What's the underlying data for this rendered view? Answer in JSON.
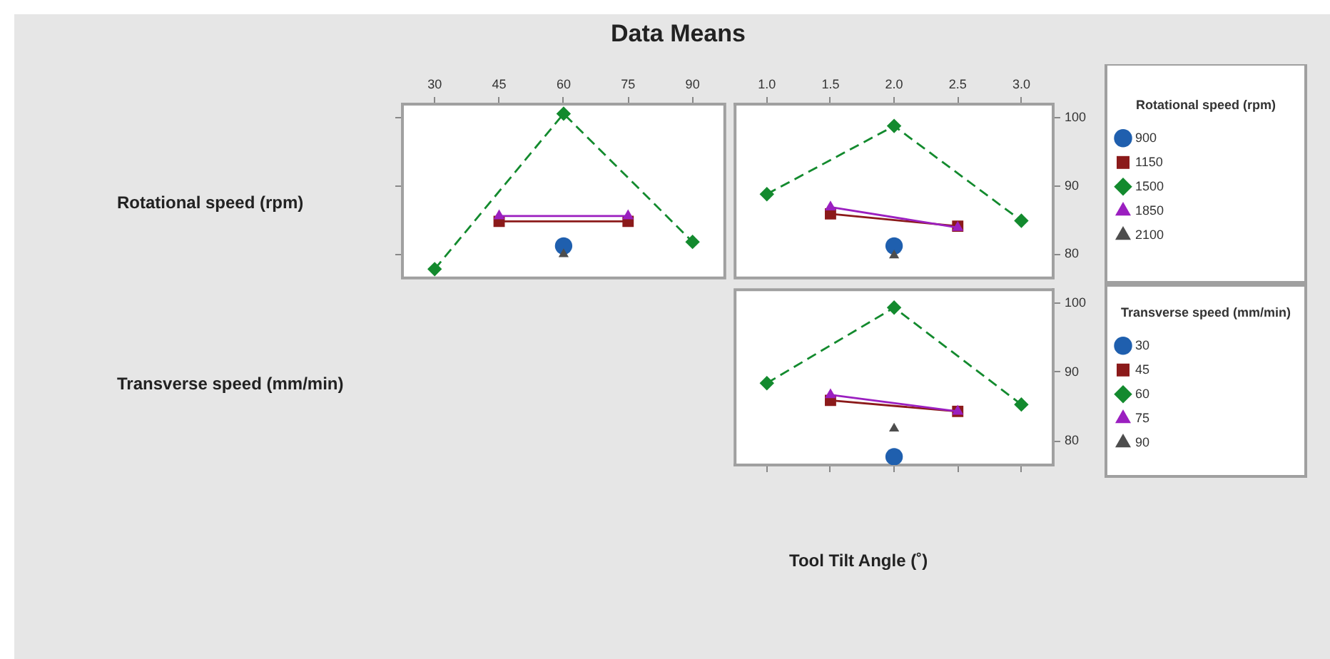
{
  "chart_data": [
    {
      "type": "line",
      "title": "Data Means",
      "ylabel": "Rotational speed (rpm)",
      "xlim": [
        22.5,
        97.5
      ],
      "xticks": [
        30,
        45,
        60,
        75,
        90
      ],
      "ylim": [
        76.5,
        102
      ],
      "yticks": [
        80,
        90,
        100
      ],
      "tick_labels": "x",
      "grid": false,
      "legend": false,
      "series": [
        {
          "color": "#1f5fae",
          "marker": "circle",
          "x": [
            60
          ],
          "values": [
            81.2
          ]
        },
        {
          "color": "#8b1a1a",
          "marker": "square",
          "x": [
            45,
            75
          ],
          "values": [
            84.8,
            84.8
          ]
        },
        {
          "color": "#138a2e",
          "marker": "diamond",
          "line_style": "dashed",
          "x": [
            30,
            60,
            90
          ],
          "values": [
            77.8,
            100.6,
            81.8
          ]
        },
        {
          "color": "#9b1fc0",
          "marker": "triangle",
          "x": [
            45,
            75
          ],
          "values": [
            85.6,
            85.6
          ]
        },
        {
          "color": "#4d4d4d",
          "marker": "triangle",
          "x": [
            60
          ],
          "values": [
            80.0
          ]
        }
      ]
    },
    {
      "type": "line",
      "legend_title": "Rotational speed (rpm)",
      "xlim": [
        0.75,
        3.25
      ],
      "xticks": [
        {
          "value": 1,
          "label": "1.0"
        },
        {
          "value": 1.5,
          "label": "1.5"
        },
        {
          "value": 2,
          "label": "2.0"
        },
        {
          "value": 2.5,
          "label": "2.5"
        },
        {
          "value": 3,
          "label": "3.0"
        }
      ],
      "ylim": [
        76.5,
        102
      ],
      "yticks": [
        80,
        90,
        100
      ],
      "grid": false,
      "legend": "right",
      "series": [
        {
          "name": "900",
          "color": "#1f5fae",
          "marker": "circle",
          "x": [
            2
          ],
          "values": [
            81.2
          ]
        },
        {
          "name": "1150",
          "color": "#8b1a1a",
          "marker": "square",
          "x": [
            1.5,
            2.5
          ],
          "values": [
            85.9,
            84.1
          ]
        },
        {
          "name": "1500",
          "color": "#138a2e",
          "marker": "diamond",
          "line_style": "dashed",
          "x": [
            1,
            2,
            3
          ],
          "values": [
            88.8,
            98.8,
            84.9
          ]
        },
        {
          "name": "1850",
          "color": "#9b1fc0",
          "marker": "triangle",
          "x": [
            1.5,
            2.5
          ],
          "values": [
            86.9,
            83.9
          ]
        },
        {
          "name": "2100",
          "color": "#4d4d4d",
          "marker": "triangle",
          "x": [
            2
          ],
          "values": [
            79.8
          ]
        }
      ]
    },
    {
      "type": "line",
      "ylabel": "Transverse speed (mm/min)",
      "xlabel": "Tool Tilt Angle (˚)",
      "legend_title": "Transverse speed (mm/min)",
      "xlim": [
        0.75,
        3.25
      ],
      "xticks": [
        1,
        1.5,
        2,
        2.5,
        3
      ],
      "ylim": [
        76.5,
        102
      ],
      "yticks": [
        80,
        90,
        100
      ],
      "tick_labels": "y",
      "grid": false,
      "legend": "right",
      "series": [
        {
          "name": "30",
          "color": "#1f5fae",
          "marker": "circle",
          "x": [
            2
          ],
          "values": [
            77.7
          ]
        },
        {
          "name": "45",
          "color": "#8b1a1a",
          "marker": "square",
          "x": [
            1.5,
            2.5
          ],
          "values": [
            85.9,
            84.3
          ]
        },
        {
          "name": "60",
          "color": "#138a2e",
          "marker": "diamond",
          "line_style": "dashed",
          "x": [
            1,
            2,
            3
          ],
          "values": [
            88.4,
            99.4,
            85.3
          ]
        },
        {
          "name": "75",
          "color": "#9b1fc0",
          "marker": "triangle",
          "x": [
            1.5,
            2.5
          ],
          "values": [
            86.7,
            84.3
          ]
        },
        {
          "name": "90",
          "color": "#4d4d4d",
          "marker": "triangle",
          "x": [
            2
          ],
          "values": [
            81.8
          ]
        }
      ]
    }
  ]
}
